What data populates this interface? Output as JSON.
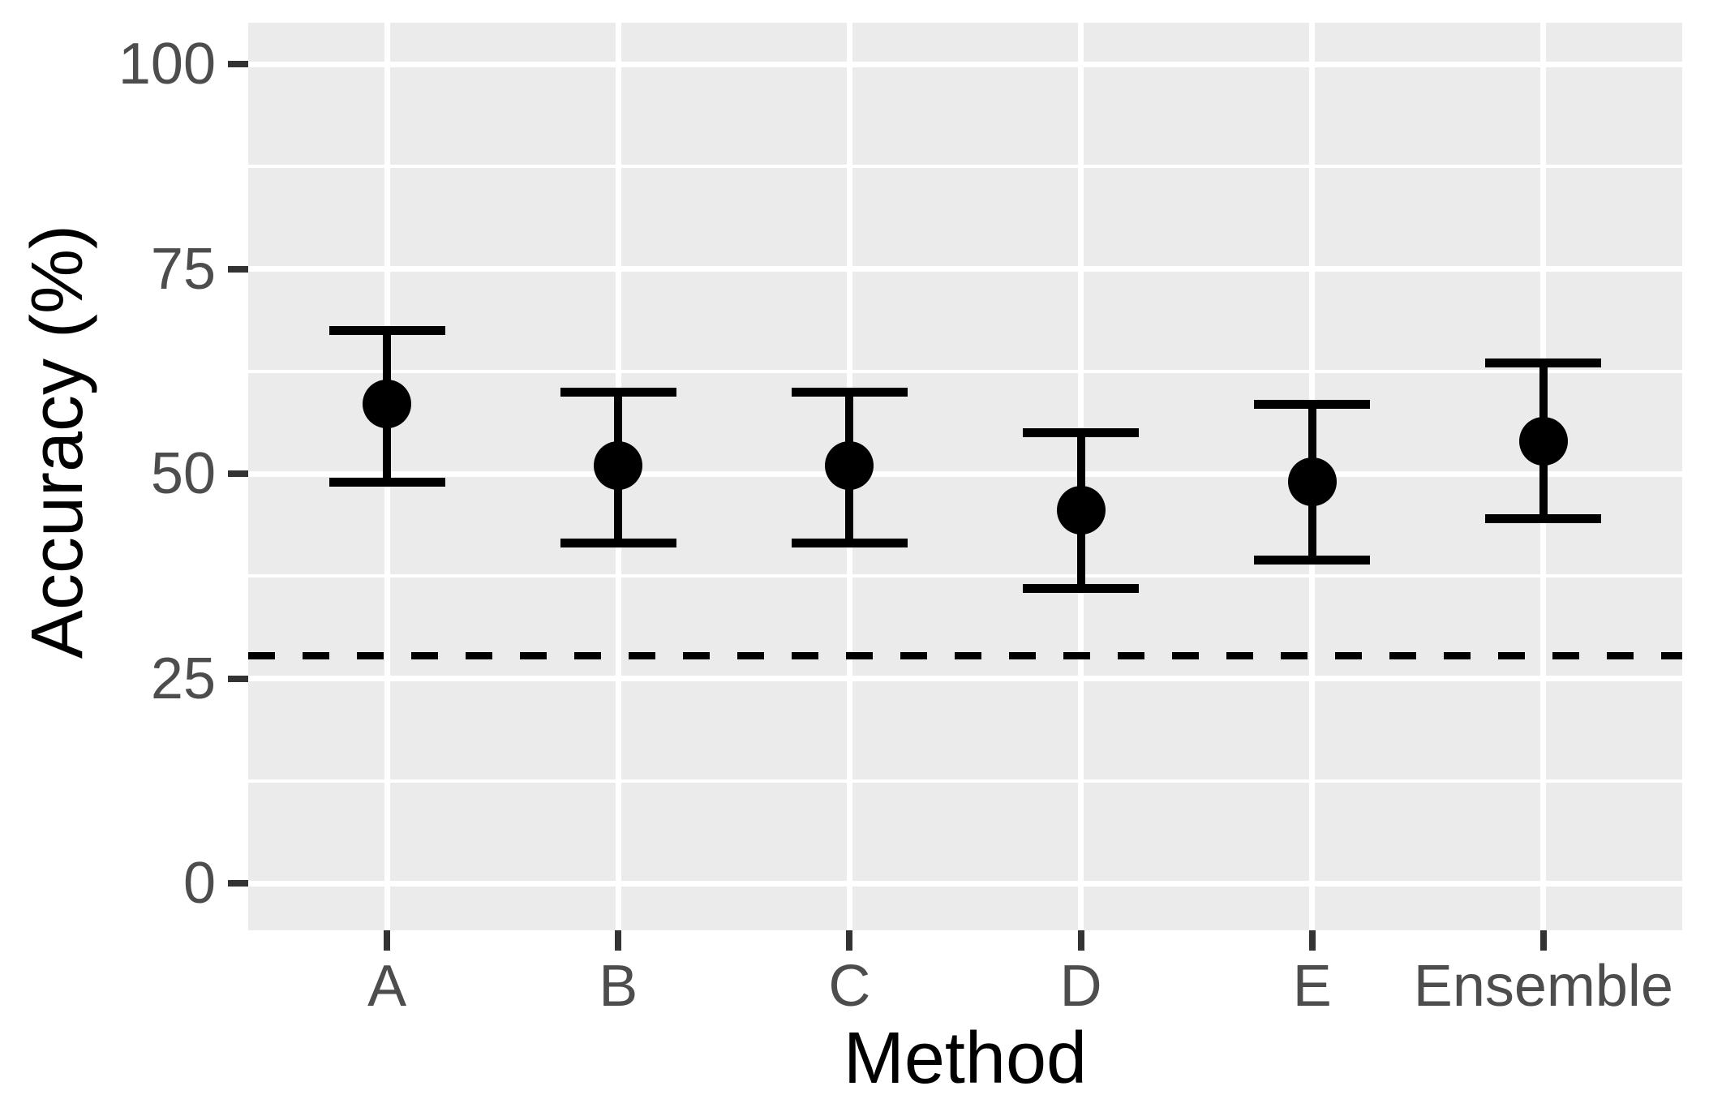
{
  "chart_data": {
    "type": "scatter",
    "subtype": "pointrange-errorbar",
    "title": "",
    "xlabel": "Method",
    "ylabel": "Accuracy (%)",
    "categories": [
      "A",
      "B",
      "C",
      "D",
      "E",
      "Ensemble"
    ],
    "series": [
      {
        "name": "Accuracy",
        "values": [
          58.5,
          51,
          51,
          45.5,
          49,
          54
        ],
        "ymin": [
          49,
          41.5,
          41.5,
          36,
          39.5,
          44.5
        ],
        "ymax": [
          67.5,
          60,
          60,
          55,
          58.5,
          63.5
        ]
      }
    ],
    "reference_line": {
      "y": 27.8,
      "style": "dashed"
    },
    "y_ticks": [
      0,
      25,
      50,
      75,
      100
    ],
    "y_tick_labels": [
      "0",
      "25",
      "50",
      "75",
      "100"
    ],
    "y_minor_gridlines": [
      12.5,
      37.5,
      62.5,
      87.5
    ],
    "ylim": [
      -5.7,
      105.1
    ],
    "grid": "major-and-minor-horizontal, major-vertical-per-category",
    "legend_position": "none"
  },
  "colors": {
    "panel_background": "#EBEBEB",
    "gridline": "#FFFFFF",
    "marks": "#000000",
    "reference_line": "#000000",
    "tick_label": "#4D4D4D",
    "axis_title": "#000000",
    "tick_mark": "#333333",
    "figure_background": "#FFFFFF"
  }
}
